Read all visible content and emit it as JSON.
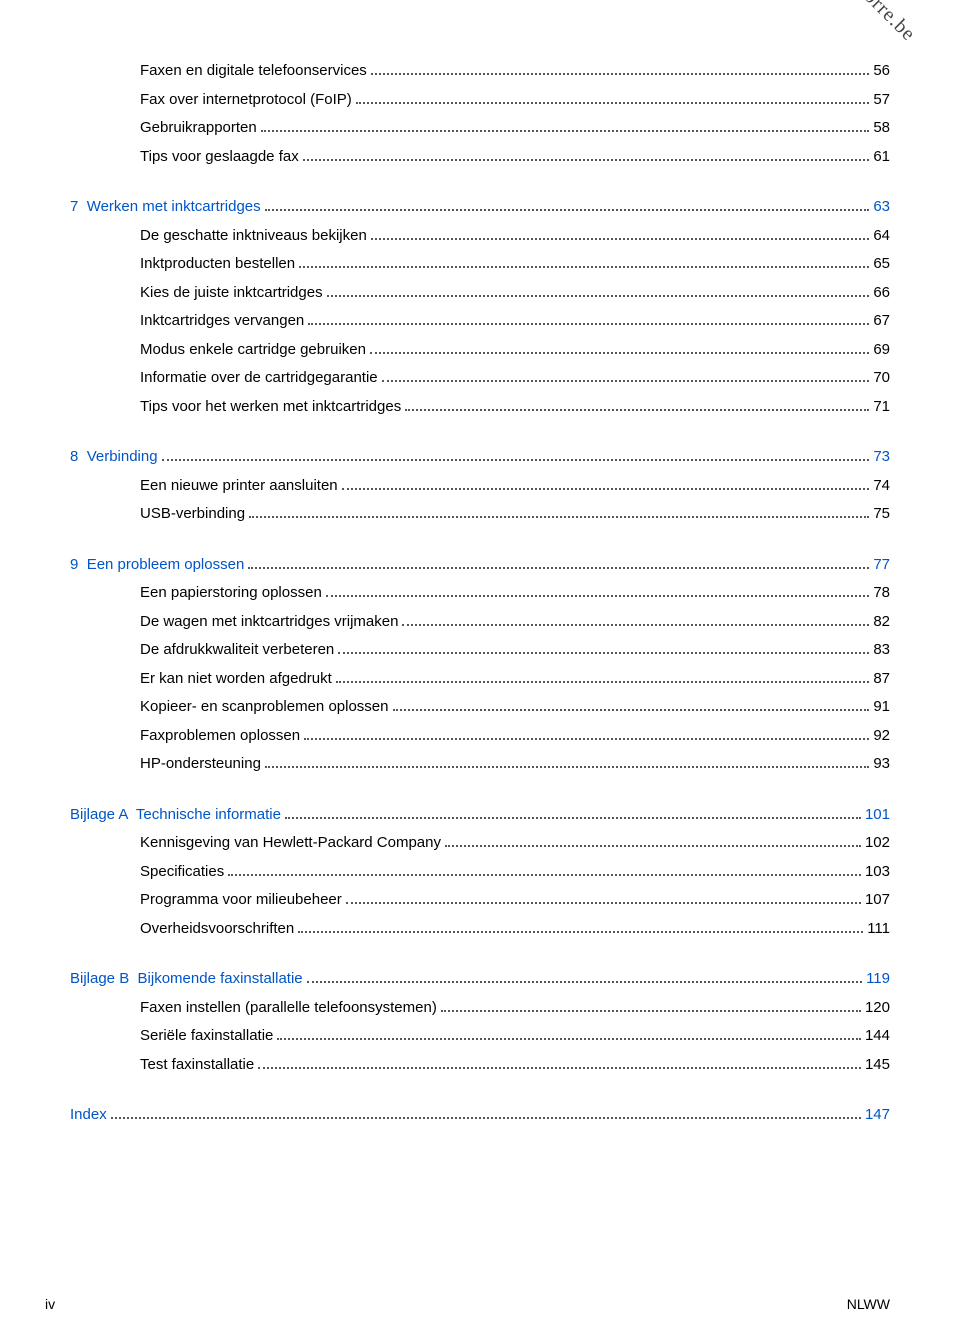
{
  "watermark": "Downloaded from www.vandenborre.be",
  "footer": {
    "left": "iv",
    "right": "NLWW"
  },
  "colors": {
    "link": "#0055c8",
    "text": "#000000",
    "dots": "#555555"
  },
  "toc": [
    {
      "heading": null,
      "items": [
        {
          "label": "Faxen en digitale telefoonservices",
          "page": "56"
        },
        {
          "label": "Fax over internetprotocol (FoIP)",
          "page": "57"
        },
        {
          "label": "Gebruikrapporten",
          "page": "58"
        },
        {
          "label": "Tips voor geslaagde fax",
          "page": "61"
        }
      ]
    },
    {
      "heading": {
        "prefix": "7  ",
        "label": "Werken met inktcartridges",
        "page": "63"
      },
      "items": [
        {
          "label": "De geschatte inktniveaus bekijken",
          "page": "64"
        },
        {
          "label": "Inktproducten bestellen",
          "page": "65"
        },
        {
          "label": "Kies de juiste inktcartridges",
          "page": "66"
        },
        {
          "label": "Inktcartridges vervangen",
          "page": "67"
        },
        {
          "label": "Modus enkele cartridge gebruiken",
          "page": "69"
        },
        {
          "label": "Informatie over de cartridgegarantie",
          "page": "70"
        },
        {
          "label": "Tips voor het werken met inktcartridges",
          "page": "71"
        }
      ]
    },
    {
      "heading": {
        "prefix": "8  ",
        "label": "Verbinding",
        "page": "73"
      },
      "items": [
        {
          "label": "Een nieuwe printer aansluiten",
          "page": "74"
        },
        {
          "label": "USB-verbinding",
          "page": "75"
        }
      ]
    },
    {
      "heading": {
        "prefix": "9  ",
        "label": "Een probleem oplossen",
        "page": "77"
      },
      "items": [
        {
          "label": "Een papierstoring oplossen",
          "page": "78"
        },
        {
          "label": "De wagen met inktcartridges vrijmaken",
          "page": "82"
        },
        {
          "label": "De afdrukkwaliteit verbeteren",
          "page": "83"
        },
        {
          "label": "Er kan niet worden afgedrukt",
          "page": "87"
        },
        {
          "label": "Kopieer- en scanproblemen oplossen",
          "page": "91"
        },
        {
          "label": "Faxproblemen oplossen",
          "page": "92"
        },
        {
          "label": "HP-ondersteuning",
          "page": "93"
        }
      ]
    },
    {
      "heading": {
        "prefix": "Bijlage A  ",
        "label": "Technische informatie",
        "page": "101"
      },
      "items": [
        {
          "label": "Kennisgeving van Hewlett-Packard Company",
          "page": "102"
        },
        {
          "label": "Specificaties",
          "page": "103"
        },
        {
          "label": "Programma voor milieubeheer",
          "page": "107"
        },
        {
          "label": "Overheidsvoorschriften",
          "page": "111"
        }
      ]
    },
    {
      "heading": {
        "prefix": "Bijlage B  ",
        "label": "Bijkomende faxinstallatie",
        "page": "119"
      },
      "items": [
        {
          "label": "Faxen instellen (parallelle telefoonsystemen)",
          "page": "120"
        },
        {
          "label": "Seriële faxinstallatie",
          "page": "144"
        },
        {
          "label": "Test faxinstallatie",
          "page": "145"
        }
      ]
    },
    {
      "heading": {
        "prefix": "",
        "label": "Index",
        "page": "147"
      },
      "items": []
    }
  ]
}
